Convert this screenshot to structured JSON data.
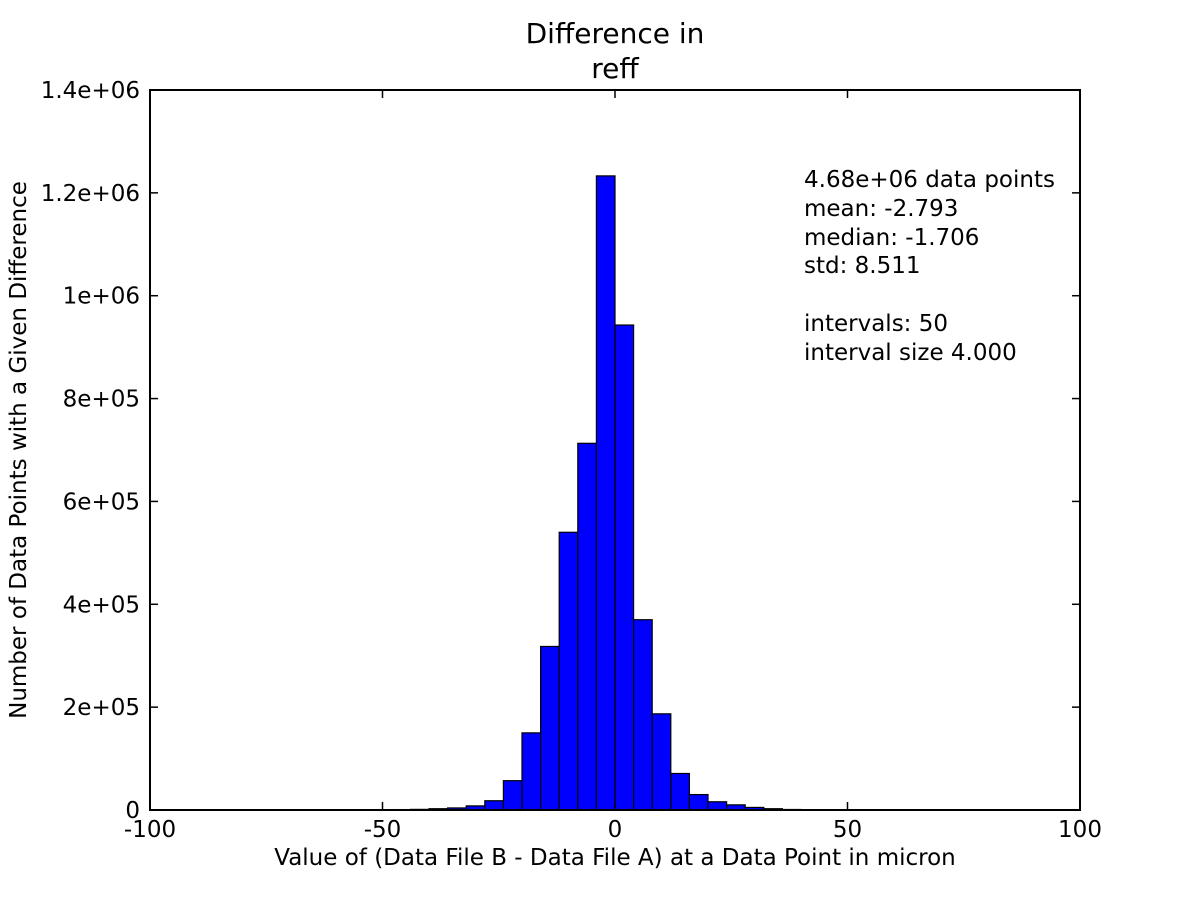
{
  "chart_data": {
    "type": "bar",
    "title_lines": [
      "Difference in",
      "reff"
    ],
    "xlabel": "Value of (Data File B - Data File A) at a Data Point in micron",
    "ylabel": "Number of Data Points with a Given Difference",
    "xlim": [
      -100,
      100
    ],
    "ylim": [
      0,
      1400000
    ],
    "grid": false,
    "x_ticks": [
      {
        "value": -100,
        "label": "-100"
      },
      {
        "value": -50,
        "label": "-50"
      },
      {
        "value": 0,
        "label": "0"
      },
      {
        "value": 50,
        "label": "50"
      },
      {
        "value": 100,
        "label": "100"
      }
    ],
    "y_ticks": [
      {
        "value": 0,
        "label": "0"
      },
      {
        "value": 200000,
        "label": "2e+05"
      },
      {
        "value": 400000,
        "label": "4e+05"
      },
      {
        "value": 600000,
        "label": "6e+05"
      },
      {
        "value": 800000,
        "label": "8e+05"
      },
      {
        "value": 1000000,
        "label": "1e+06"
      },
      {
        "value": 1200000,
        "label": "1.2e+06"
      },
      {
        "value": 1400000,
        "label": "1.4e+06"
      }
    ],
    "bar_color": "#0000ff",
    "bar_edge_color": "#000000",
    "bin_edges": [
      -56,
      -52,
      -48,
      -44,
      -40,
      -36,
      -32,
      -28,
      -24,
      -20,
      -16,
      -12,
      -8,
      -4,
      0,
      4,
      8,
      12,
      16,
      20,
      24,
      28,
      32,
      36,
      40,
      44,
      48
    ],
    "values": [
      300,
      500,
      800,
      1200,
      2500,
      4000,
      8000,
      18000,
      57000,
      150000,
      318000,
      540000,
      713000,
      1233000,
      943000,
      370000,
      187000,
      71000,
      30000,
      16000,
      10000,
      5000,
      2500,
      1000,
      600,
      300
    ],
    "stats_lines": [
      "4.68e+06 data points",
      "mean: -2.793",
      "median: -1.706",
      "std: 8.511",
      "",
      "intervals: 50",
      "interval size 4.000"
    ]
  }
}
